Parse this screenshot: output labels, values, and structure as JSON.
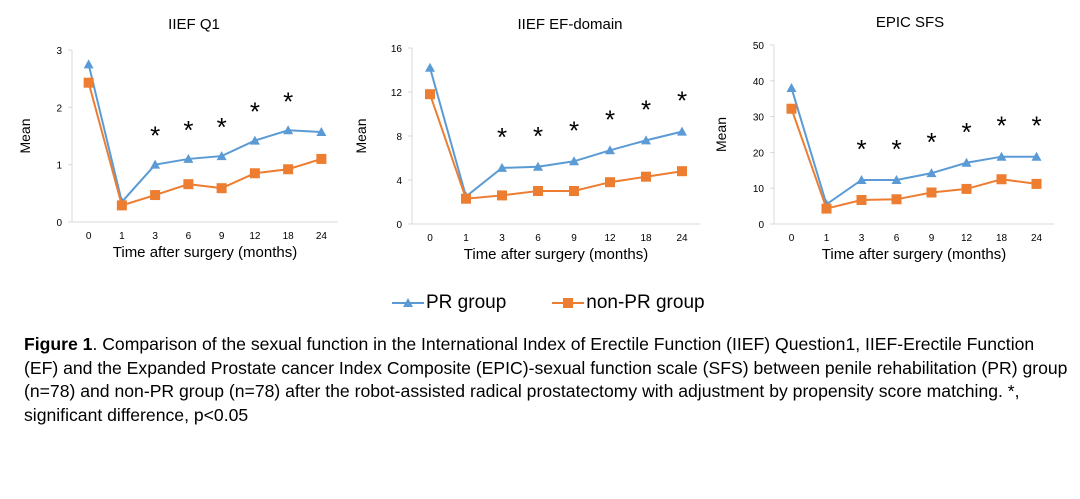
{
  "colors": {
    "pr": "#5B9BD5",
    "non_pr": "#ED7D31",
    "axis": "#D9D9D9",
    "text": "#000000"
  },
  "chart_data": [
    {
      "type": "line",
      "title": "IIEF Q1",
      "xlabel": "Time after surgery (months)",
      "ylabel": "Mean",
      "categories": [
        "0",
        "1",
        "3",
        "6",
        "9",
        "12",
        "18",
        "24"
      ],
      "ylim": [
        0,
        3
      ],
      "yticks": [
        0,
        1,
        2,
        3
      ],
      "grid": false,
      "series": [
        {
          "name": "PR group",
          "marker": "triangle",
          "values": [
            2.75,
            0.35,
            1.0,
            1.1,
            1.15,
            1.42,
            1.6,
            1.57
          ]
        },
        {
          "name": "non-PR group",
          "marker": "square",
          "values": [
            2.43,
            0.29,
            0.47,
            0.66,
            0.59,
            0.85,
            0.92,
            1.1
          ]
        }
      ],
      "annotations": [
        {
          "category": "3",
          "text": "*"
        },
        {
          "category": "6",
          "text": "*"
        },
        {
          "category": "9",
          "text": "*"
        },
        {
          "category": "12",
          "text": "*"
        },
        {
          "category": "18",
          "text": "*"
        }
      ]
    },
    {
      "type": "line",
      "title": "IIEF EF-domain",
      "xlabel": "Time after surgery (months)",
      "ylabel": "Mean",
      "categories": [
        "0",
        "1",
        "3",
        "6",
        "9",
        "12",
        "18",
        "24"
      ],
      "ylim": [
        0,
        16
      ],
      "yticks": [
        0,
        4,
        8,
        12,
        16
      ],
      "grid": false,
      "series": [
        {
          "name": "PR group",
          "marker": "triangle",
          "values": [
            14.2,
            2.5,
            5.1,
            5.2,
            5.7,
            6.7,
            7.6,
            8.4
          ]
        },
        {
          "name": "non-PR group",
          "marker": "square",
          "values": [
            11.8,
            2.3,
            2.6,
            3.0,
            3.0,
            3.8,
            4.3,
            4.8
          ]
        }
      ],
      "annotations": [
        {
          "category": "3",
          "text": "*"
        },
        {
          "category": "6",
          "text": "*"
        },
        {
          "category": "9",
          "text": "*"
        },
        {
          "category": "12",
          "text": "*"
        },
        {
          "category": "18",
          "text": "*"
        },
        {
          "category": "24",
          "text": "*"
        }
      ]
    },
    {
      "type": "line",
      "title": "EPIC SFS",
      "xlabel": "Time after surgery (months)",
      "ylabel": "Mean",
      "categories": [
        "0",
        "1",
        "3",
        "6",
        "9",
        "12",
        "18",
        "24"
      ],
      "ylim": [
        0,
        50
      ],
      "yticks": [
        0,
        10,
        20,
        30,
        40,
        50
      ],
      "grid": false,
      "series": [
        {
          "name": "PR group",
          "marker": "triangle",
          "values": [
            38,
            5.5,
            12.3,
            12.3,
            14.2,
            17.1,
            18.8,
            18.8
          ]
        },
        {
          "name": "non-PR group",
          "marker": "square",
          "values": [
            32.2,
            4.3,
            6.7,
            6.9,
            8.8,
            9.8,
            12.5,
            11.2
          ]
        }
      ],
      "annotations": [
        {
          "category": "3",
          "text": "*"
        },
        {
          "category": "6",
          "text": "*"
        },
        {
          "category": "9",
          "text": "*"
        },
        {
          "category": "12",
          "text": "*"
        },
        {
          "category": "18",
          "text": "*"
        },
        {
          "category": "24",
          "text": "*"
        }
      ]
    }
  ],
  "legend": {
    "pr_label": "PR group",
    "non_pr_label": "non-PR group"
  },
  "caption": {
    "label": "Figure 1",
    "text": ". Comparison of the sexual function in the International Index of Erectile Function (IIEF) Question1, IIEF-Erectile Function (EF) and the Expanded Prostate cancer Index Composite (EPIC)-sexual function scale (SFS) between penile rehabilitation (PR) group (n=78) and non-PR group (n=78) after the robot-assisted radical prostatectomy with adjustment by propensity score matching. *, significant difference, p<0.05"
  }
}
